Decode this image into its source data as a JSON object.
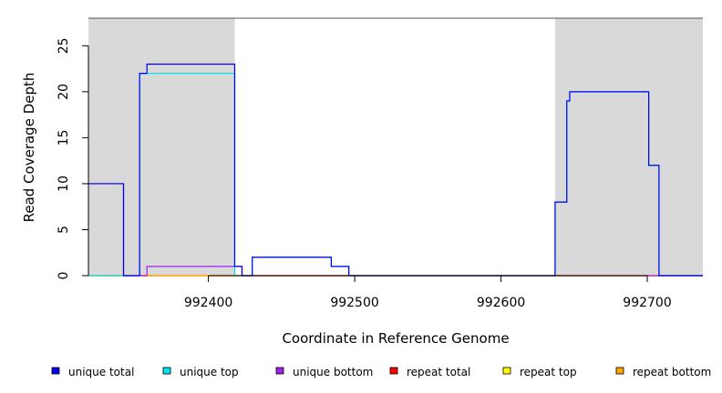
{
  "chart_data": {
    "type": "line",
    "xlabel": "Coordinate in Reference Genome",
    "ylabel": "Read Coverage Depth",
    "xlim": [
      992318,
      992738
    ],
    "ylim": [
      0,
      28
    ],
    "x_ticks": [
      {
        "value": 992400,
        "label": "992400"
      },
      {
        "value": 992500,
        "label": "992500"
      },
      {
        "value": 992600,
        "label": "992600"
      },
      {
        "value": 992700,
        "label": "992700"
      }
    ],
    "y_ticks": [
      {
        "value": 0,
        "label": "0"
      },
      {
        "value": 5,
        "label": "5"
      },
      {
        "value": 10,
        "label": "10"
      },
      {
        "value": 15,
        "label": "15"
      },
      {
        "value": 20,
        "label": "20"
      },
      {
        "value": 25,
        "label": "25"
      }
    ],
    "grid": false,
    "shaded_regions": [
      {
        "x": [
          992318,
          992418
        ],
        "color": "#d9d9d9"
      },
      {
        "x": [
          992637,
          992738
        ],
        "color": "#d9d9d9"
      }
    ],
    "series": [
      {
        "name": "unique total",
        "color": "#0000ee",
        "type": "step",
        "x": [
          992318,
          992342,
          992353,
          992358,
          992418,
          992423,
          992430,
          992484,
          992496,
          992637,
          992645,
          992647,
          992701,
          992708,
          992738
        ],
        "values": [
          10,
          0,
          22,
          23,
          1,
          0,
          2,
          1,
          0,
          8,
          19,
          20,
          12,
          0,
          0
        ]
      },
      {
        "name": "unique top",
        "color": "#00e5ee",
        "type": "step",
        "x": [
          992318,
          992342,
          992353,
          992418,
          992423,
          992430,
          992484,
          992496,
          992637,
          992645,
          992647,
          992701,
          992708,
          992738
        ],
        "values": [
          0,
          0,
          22,
          0,
          0,
          2,
          1,
          0,
          8,
          19,
          20,
          12,
          0,
          0
        ]
      },
      {
        "name": "unique bottom",
        "color": "#a020f0",
        "type": "step",
        "x": [
          992318,
          992342,
          992353,
          992358,
          992418,
          992423,
          992738
        ],
        "values": [
          10,
          0,
          0,
          1,
          1,
          0,
          0
        ]
      },
      {
        "name": "repeat total",
        "color": "#ff0000",
        "type": "step",
        "x": [
          992318,
          992738
        ],
        "values": [
          0,
          0
        ]
      },
      {
        "name": "repeat top",
        "color": "#ffff00",
        "type": "step",
        "x": [
          992318,
          992738
        ],
        "values": [
          0,
          0
        ]
      },
      {
        "name": "repeat bottom",
        "color": "#ffa500",
        "type": "step",
        "x": [
          992318,
          992738
        ],
        "values": [
          0,
          0
        ]
      }
    ]
  },
  "legend": [
    {
      "label": "unique total",
      "color": "#0000ee"
    },
    {
      "label": "unique top",
      "color": "#00e5ee"
    },
    {
      "label": "unique bottom",
      "color": "#a020f0"
    },
    {
      "label": "repeat total",
      "color": "#ff0000"
    },
    {
      "label": "repeat top",
      "color": "#ffff00"
    },
    {
      "label": "repeat bottom",
      "color": "#ffa500"
    }
  ]
}
